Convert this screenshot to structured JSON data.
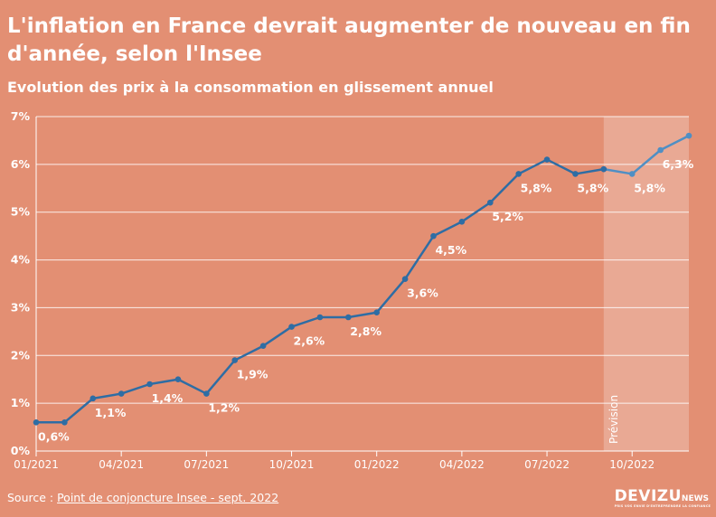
{
  "title": "L'inflation en France devrait augmenter de nouveau en fin d'année, selon l'Insee",
  "subtitle": "Evolution des prix à la consommation en glissement annuel",
  "source": {
    "prefix": "Source : ",
    "link_text": "Point de conjoncture Insee - sept. 2022"
  },
  "brand": {
    "name": "DEVIZU",
    "suffix": "NEWS",
    "tagline": "PRIS VOS ENVIE D'ENTREPRENDRE LA CONFIANCE"
  },
  "colors": {
    "background": "#e38f73",
    "line": "#2e6da4",
    "forecast_line": "#4f8fc4",
    "forecast_band": "#e9a994",
    "grid": "#ffffff"
  },
  "chart_data": {
    "type": "line",
    "title": "L'inflation en France devrait augmenter de nouveau en fin d'année, selon l'Insee",
    "subtitle": "Evolution des prix à la consommation en glissement annuel",
    "xlabel": "",
    "ylabel": "",
    "ylim": [
      0,
      7
    ],
    "yticks": [
      "0%",
      "1%",
      "2%",
      "3%",
      "4%",
      "5%",
      "6%",
      "7%"
    ],
    "xticks": [
      "01/2021",
      "04/2021",
      "07/2021",
      "10/2021",
      "01/2022",
      "04/2022",
      "07/2022",
      "10/2022"
    ],
    "grid": true,
    "x": [
      "01/2021",
      "02/2021",
      "03/2021",
      "04/2021",
      "05/2021",
      "06/2021",
      "07/2021",
      "08/2021",
      "09/2021",
      "10/2021",
      "11/2021",
      "12/2021",
      "01/2022",
      "02/2022",
      "03/2022",
      "04/2022",
      "05/2022",
      "06/2022",
      "07/2022",
      "08/2022",
      "09/2022",
      "10/2022",
      "11/2022",
      "12/2022"
    ],
    "series": [
      {
        "values": [
          0.6,
          0.6,
          1.1,
          1.2,
          1.4,
          1.5,
          1.2,
          1.9,
          2.2,
          2.6,
          2.8,
          2.8,
          2.9,
          3.6,
          4.5,
          4.8,
          5.2,
          5.8,
          6.1,
          5.8,
          5.9,
          5.8,
          6.3,
          6.6
        ]
      }
    ],
    "forecast_start": "09/2022",
    "forecast_label": "Prévision",
    "data_labels": [
      {
        "index": 0,
        "text": "0,6%"
      },
      {
        "index": 2,
        "text": "1,1%"
      },
      {
        "index": 4,
        "text": "1,4%"
      },
      {
        "index": 6,
        "text": "1,2%"
      },
      {
        "index": 7,
        "text": "1,9%"
      },
      {
        "index": 9,
        "text": "2,6%"
      },
      {
        "index": 11,
        "text": "2,8%"
      },
      {
        "index": 13,
        "text": "3,6%"
      },
      {
        "index": 14,
        "text": "4,5%"
      },
      {
        "index": 16,
        "text": "5,2%"
      },
      {
        "index": 17,
        "text": "5,8%"
      },
      {
        "index": 19,
        "text": "5,8%"
      },
      {
        "index": 21,
        "text": "5,8%"
      },
      {
        "index": 22,
        "text": "6,3%"
      }
    ]
  }
}
